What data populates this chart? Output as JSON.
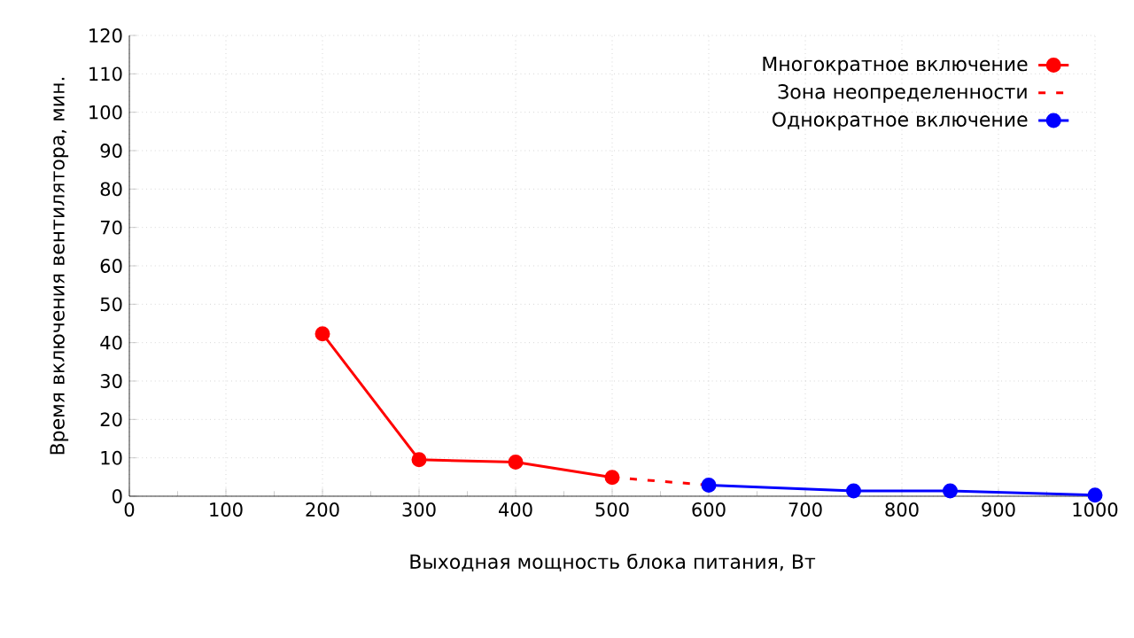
{
  "chart_data": {
    "type": "line",
    "xlabel": "Выходная мощность блока питания, Вт",
    "ylabel": "Время включения вентилятора, мин.",
    "xlim": [
      0,
      1000
    ],
    "xticks": [
      0,
      100,
      200,
      300,
      400,
      500,
      600,
      700,
      800,
      900,
      1000
    ],
    "ylim": [
      0,
      120
    ],
    "yticks": [
      0,
      10,
      20,
      30,
      40,
      50,
      60,
      70,
      80,
      90,
      100,
      110,
      120
    ],
    "grid": true,
    "legend": "top right",
    "series": [
      {
        "name": "Многократное включение",
        "color": "#ff0000",
        "x": [
          200,
          300,
          400,
          500
        ],
        "values": [
          42.3,
          9.5,
          8.9,
          4.9
        ],
        "marker": "circle",
        "line_style": "solid"
      },
      {
        "name": "Зона неопределенности",
        "color": "#ff0000",
        "x": [
          500,
          600
        ],
        "values": [
          4.9,
          2.9
        ],
        "marker": "none",
        "line_style": "dashed"
      },
      {
        "name": "Однократное включение",
        "color": "#0000ff",
        "x": [
          600,
          750,
          850,
          1000
        ],
        "values": [
          2.9,
          1.4,
          1.4,
          0.3
        ],
        "marker": "circle",
        "line_style": "solid"
      }
    ]
  }
}
